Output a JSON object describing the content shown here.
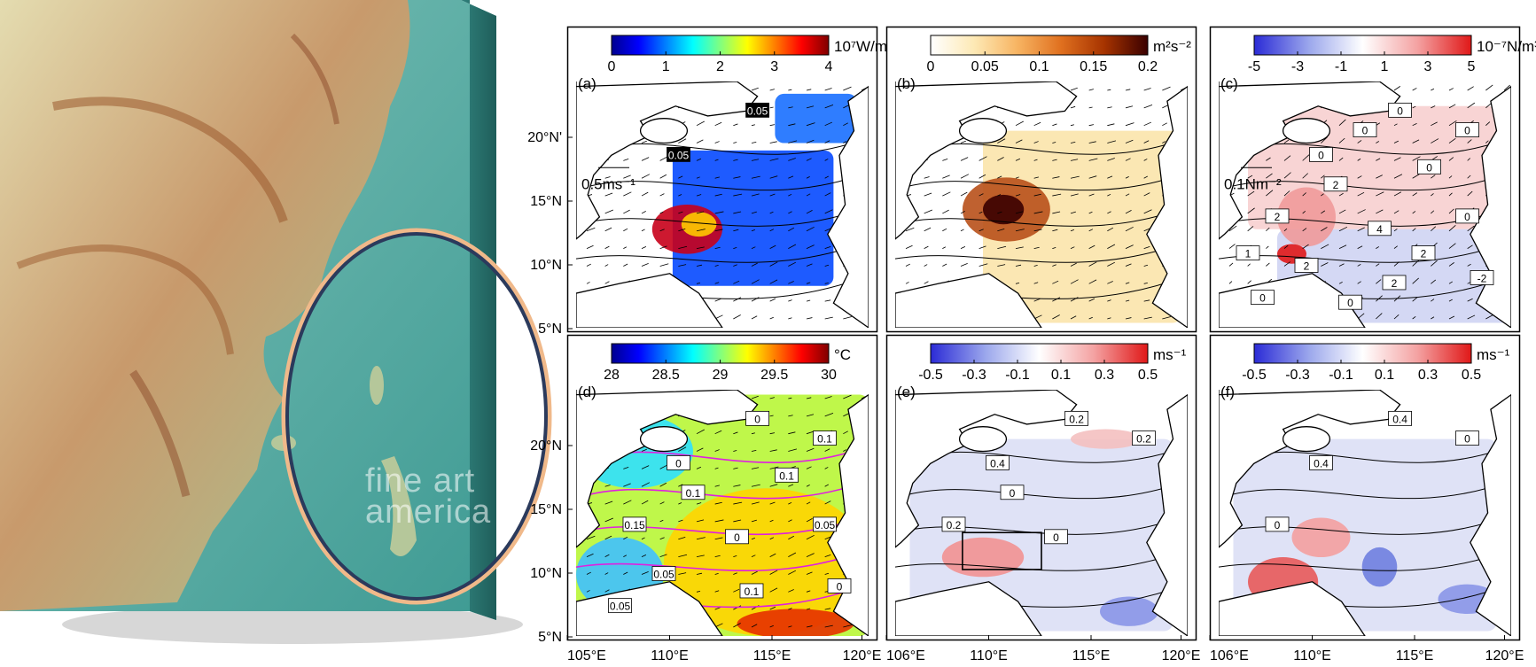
{
  "watermark": {
    "line1": "fine art",
    "line2": "america"
  },
  "colors": {
    "jet": [
      "#00008f",
      "#0000ff",
      "#0080ff",
      "#00ffff",
      "#80ff80",
      "#ffff00",
      "#ff8000",
      "#ff0000",
      "#800000"
    ],
    "heat": [
      "#ffffff",
      "#fde9b5",
      "#f7b462",
      "#e0701f",
      "#a63300",
      "#3a0000"
    ],
    "diverge": [
      "#2b2bd6",
      "#9aa6ec",
      "#ffffff",
      "#f4a3a3",
      "#e01818"
    ],
    "contour_magenta": "#e01fe0"
  },
  "panels": [
    {
      "id": "a",
      "label": "(a)",
      "unit": "10⁷W/m",
      "colormap": "jet",
      "cb_ticks": [
        "0",
        "1",
        "2",
        "3",
        "4"
      ],
      "row": 0,
      "col": 0,
      "show_lat": true,
      "show_lon": false,
      "contour_labels": [
        "0.05",
        "0.05"
      ],
      "vector_label": "0.5ms⁻¹"
    },
    {
      "id": "b",
      "label": "(b)",
      "unit": "m²s⁻²",
      "colormap": "heat",
      "cb_ticks": [
        "0",
        "0.05",
        "0.1",
        "0.15",
        "0.2"
      ],
      "row": 0,
      "col": 1,
      "show_lat": false,
      "show_lon": false,
      "contour_labels": [],
      "vector_label": ""
    },
    {
      "id": "c",
      "label": "(c)",
      "unit": "10⁻⁷N/m³",
      "colormap": "diverge",
      "cb_ticks": [
        "-5",
        "-3",
        "-1",
        "1",
        "3",
        "5"
      ],
      "row": 0,
      "col": 2,
      "show_lat": false,
      "show_lon": false,
      "contour_labels": [
        "0",
        "0",
        "0",
        "2",
        "2",
        "4",
        "0",
        "2",
        "0",
        "0",
        "2",
        "-2",
        "0",
        "2",
        "1",
        "0"
      ],
      "vector_label": "0.1Nm⁻²"
    },
    {
      "id": "d",
      "label": "(d)",
      "unit": "°C",
      "colormap": "jet",
      "cb_ticks": [
        "28",
        "28.5",
        "29",
        "29.5",
        "30"
      ],
      "row": 1,
      "col": 0,
      "show_lat": true,
      "show_lon": true,
      "lon_ticks": [
        "105°E",
        "110°E",
        "115°E",
        "120°E"
      ],
      "contour_labels": [
        "0",
        "0",
        "0.1",
        "0.15",
        "0.1",
        "0",
        "0.1",
        "0.05",
        "0.05",
        "0.05",
        "0.1",
        "0"
      ],
      "vector_label": ""
    },
    {
      "id": "e",
      "label": "(e)",
      "unit": "ms⁻¹",
      "colormap": "diverge",
      "cb_ticks": [
        "-0.5",
        "-0.3",
        "-0.1",
        "0.1",
        "0.3",
        "0.5"
      ],
      "row": 1,
      "col": 1,
      "show_lat": false,
      "show_lon": true,
      "lon_ticks": [
        "106°E",
        "110°E",
        "115°E",
        "120°E"
      ],
      "contour_labels": [
        "0.2",
        "0.4",
        "0.2",
        "0.2",
        "0",
        "0"
      ],
      "vector_label": ""
    },
    {
      "id": "f",
      "label": "(f)",
      "unit": "ms⁻¹",
      "colormap": "diverge",
      "cb_ticks": [
        "-0.5",
        "-0.3",
        "-0.1",
        "0.1",
        "0.3",
        "0.5"
      ],
      "row": 1,
      "col": 2,
      "show_lat": false,
      "show_lon": true,
      "lon_ticks": [
        "106°E",
        "110°E",
        "115°E",
        "120°E"
      ],
      "contour_labels": [
        "0.4",
        "0.4",
        "0",
        "0"
      ],
      "vector_label": ""
    }
  ],
  "lat_ticks": [
    "20°N'",
    "15°N",
    "10°N",
    "5°N"
  ],
  "lat_ticks_lower": [
    "20°N",
    "15°N",
    "10°N",
    "5°N"
  ]
}
